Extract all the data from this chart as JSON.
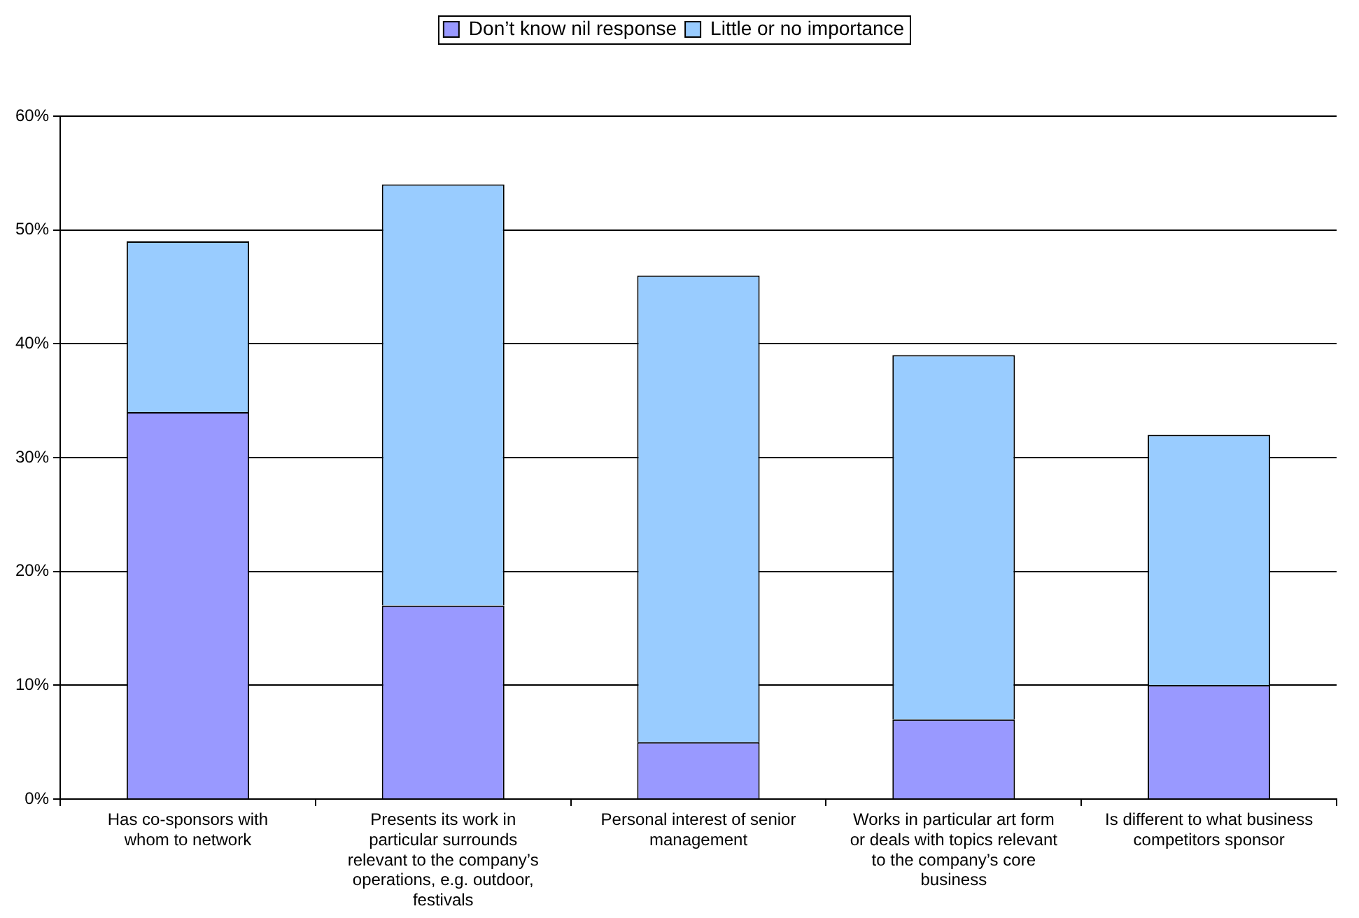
{
  "chart_data": {
    "type": "bar",
    "stacked": true,
    "categories": [
      "Has co-sponsors with whom to network",
      "Presents its work in particular surrounds relevant to the company’s operations, e.g. outdoor, festivals",
      "Personal interest of senior management",
      "Works in particular art form or deals with topics relevant to the company’s core business",
      "Is different to what business competitors sponsor"
    ],
    "series": [
      {
        "name": "Don’t know nil response",
        "color": "#9999ff",
        "values": [
          34,
          17,
          5,
          7,
          10
        ]
      },
      {
        "name": "Little or no importance",
        "color": "#99ccff",
        "values": [
          15,
          37,
          41,
          32,
          22
        ]
      }
    ],
    "ylim": [
      0,
      60
    ],
    "yticks": [
      {
        "value": 0,
        "label": "0%"
      },
      {
        "value": 10,
        "label": "10%"
      },
      {
        "value": 20,
        "label": "20%"
      },
      {
        "value": 30,
        "label": "30%"
      },
      {
        "value": 40,
        "label": "40%"
      },
      {
        "value": 50,
        "label": "50%"
      },
      {
        "value": 60,
        "label": "60%"
      }
    ],
    "grid": "y",
    "legend": "top"
  }
}
